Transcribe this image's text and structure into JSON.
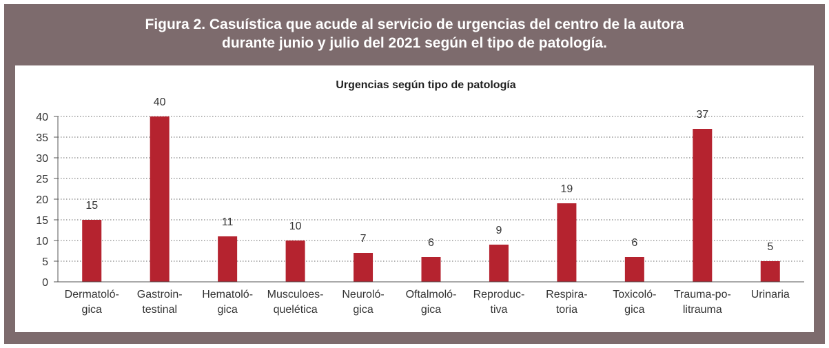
{
  "figure": {
    "title_line1": "Figura 2. Casuística que acude al servicio de urgencias del centro de la autora",
    "title_line2": "durante junio y julio del 2021 según el tipo de patología."
  },
  "colors": {
    "frame": "#7d6b6d",
    "bar": "#b5232f"
  },
  "chart_data": {
    "type": "bar",
    "title": "Urgencias según tipo de patología",
    "categories": [
      [
        "Dermatoló-",
        "gica"
      ],
      [
        "Gastroin-",
        "testinal"
      ],
      [
        "Hematoló-",
        "gica"
      ],
      [
        "Musculoes-",
        "quelética"
      ],
      [
        "Neuroló-",
        "gica"
      ],
      [
        "Oftalmoló-",
        "gica"
      ],
      [
        "Reproduc-",
        "tiva"
      ],
      [
        "Respira-",
        "toria"
      ],
      [
        "Toxicoló-",
        "gica"
      ],
      [
        "Trauma-po-",
        "litrauma"
      ],
      [
        "Urinaria"
      ]
    ],
    "values": [
      15,
      40,
      11,
      10,
      7,
      6,
      9,
      19,
      6,
      37,
      5
    ],
    "data_labels": [
      "15",
      "40",
      "11",
      "10",
      "7",
      "6",
      "9",
      "19",
      "6",
      "37",
      "5"
    ],
    "ylim": [
      0,
      40
    ],
    "yticks": [
      0,
      5,
      10,
      15,
      20,
      25,
      30,
      35,
      40
    ],
    "grid": true,
    "legend": "none"
  }
}
